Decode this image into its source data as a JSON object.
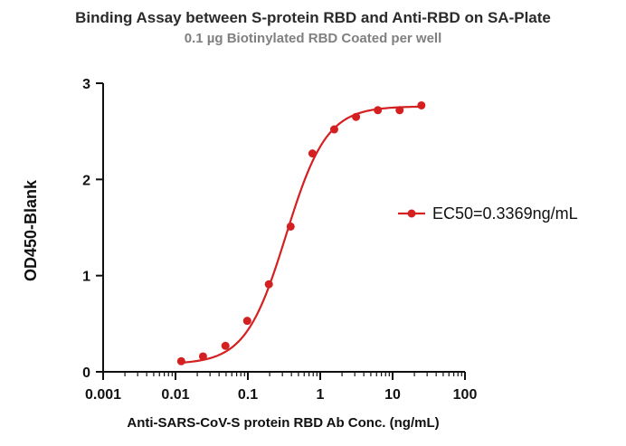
{
  "chart_data": {
    "type": "scatter",
    "title": "Binding Assay between S-protein RBD and Anti-RBD on SA-Plate",
    "subtitle": "0.1 µg Biotinylated RBD Coated per well",
    "xlabel": "Anti-SARS-CoV-S protein RBD Ab Conc. (ng/mL)",
    "ylabel": "OD450-Blank",
    "xscale": "log",
    "xlim": [
      0.001,
      100
    ],
    "ylim": [
      0,
      3
    ],
    "xticks": [
      "0.001",
      "0.01",
      "0.1",
      "1",
      "10",
      "100"
    ],
    "yticks": [
      "0",
      "1",
      "2",
      "3"
    ],
    "series": [
      {
        "name": "EC50=0.3369ng/mL",
        "color": "#d42020",
        "x": [
          0.012,
          0.024,
          0.049,
          0.098,
          0.195,
          0.39,
          0.78,
          1.56,
          3.125,
          6.25,
          12.5,
          25
        ],
        "y": [
          0.11,
          0.16,
          0.27,
          0.53,
          0.91,
          1.51,
          2.27,
          2.52,
          2.65,
          2.72,
          2.72,
          2.77
        ],
        "fit": {
          "bottom": 0.08,
          "top": 2.76,
          "ec50": 0.3369,
          "hill": 1.55
        }
      }
    ],
    "legend": "right"
  }
}
